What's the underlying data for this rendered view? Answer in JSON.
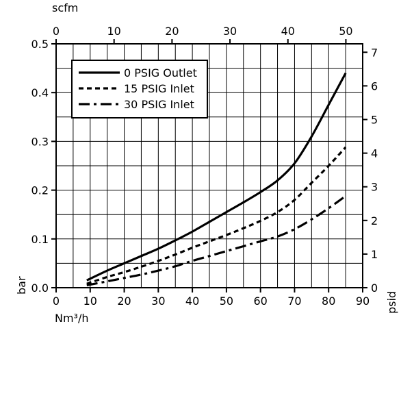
{
  "chart_data": {
    "type": "line",
    "xlabel": "Nm³/h",
    "ylabel": "bar",
    "x2label": "scfm",
    "y2label": "psid",
    "xlim": [
      0,
      90
    ],
    "ylim": [
      0,
      0.5
    ],
    "x2lim": [
      0,
      52.9
    ],
    "y2lim": [
      0,
      7.25
    ],
    "xticks": [
      "0",
      "10",
      "20",
      "30",
      "40",
      "50",
      "60",
      "70",
      "80",
      "90"
    ],
    "yticks": [
      "0.0",
      "0.1",
      "0.2",
      "0.3",
      "0.4",
      "0.5"
    ],
    "x2ticks": [
      "0",
      "10",
      "20",
      "30",
      "40",
      "50"
    ],
    "y2ticks": [
      "0",
      "1",
      "2",
      "3",
      "4",
      "5",
      "6",
      "7"
    ],
    "grid": true,
    "legend_position": "top-left",
    "series": [
      {
        "name": "0 PSIG Outlet",
        "style": "solid",
        "x": [
          9,
          15,
          20,
          25,
          30,
          35,
          40,
          45,
          50,
          55,
          60,
          65,
          70,
          75,
          80,
          85
        ],
        "y": [
          0.015,
          0.035,
          0.05,
          0.065,
          0.08,
          0.097,
          0.115,
          0.135,
          0.155,
          0.175,
          0.196,
          0.22,
          0.255,
          0.31,
          0.375,
          0.44
        ]
      },
      {
        "name": "15 PSIG Inlet",
        "style": "dashed",
        "x": [
          9,
          15,
          20,
          25,
          30,
          35,
          40,
          45,
          50,
          55,
          60,
          65,
          70,
          75,
          80,
          85
        ],
        "y": [
          0.008,
          0.022,
          0.032,
          0.043,
          0.055,
          0.068,
          0.082,
          0.095,
          0.108,
          0.122,
          0.137,
          0.155,
          0.18,
          0.215,
          0.25,
          0.288
        ]
      },
      {
        "name": "30 PSIG Inlet",
        "style": "dashdot",
        "x": [
          9,
          15,
          20,
          25,
          30,
          35,
          40,
          45,
          50,
          55,
          60,
          65,
          70,
          75,
          80,
          85
        ],
        "y": [
          0.005,
          0.013,
          0.02,
          0.027,
          0.035,
          0.044,
          0.055,
          0.065,
          0.075,
          0.085,
          0.095,
          0.105,
          0.12,
          0.14,
          0.163,
          0.188
        ]
      }
    ]
  }
}
